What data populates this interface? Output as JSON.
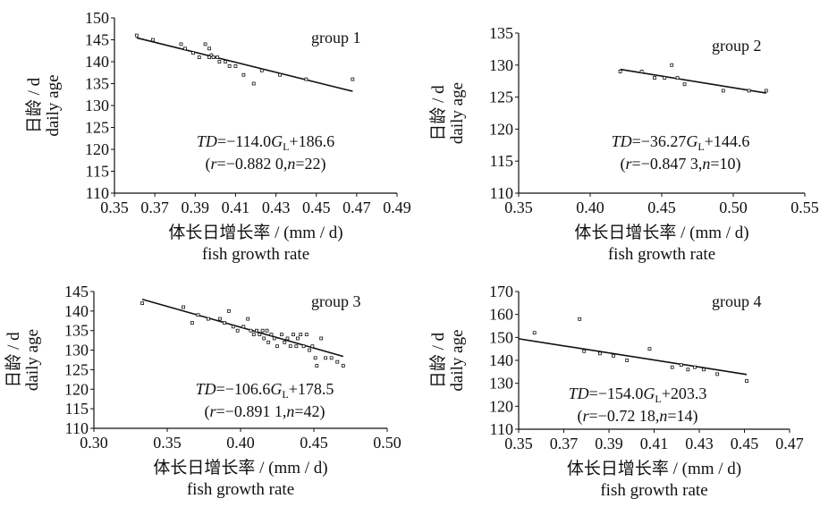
{
  "chart_data": [
    {
      "type": "scatter",
      "title": "group 1",
      "ylabel_cn": "日龄 / d",
      "ylabel_en": "daily age",
      "xlabel_cn": "体长日增长率 / (mm / d)",
      "xlabel_en": "fish growth rate",
      "xlim": [
        0.35,
        0.49
      ],
      "ylim": [
        110,
        150
      ],
      "xticks": [
        0.35,
        0.37,
        0.39,
        0.41,
        0.43,
        0.45,
        0.47,
        0.49
      ],
      "xtick_labels": [
        "0.35",
        "0.37",
        "0.39",
        "0.41",
        "0.43",
        "0.45",
        "0.47",
        "0.49"
      ],
      "yticks": [
        110,
        115,
        120,
        125,
        130,
        135,
        140,
        145,
        150
      ],
      "ytick_labels": [
        "110",
        "115",
        "120",
        "125",
        "130",
        "135",
        "140",
        "145",
        "150"
      ],
      "points": [
        [
          0.361,
          146
        ],
        [
          0.369,
          145
        ],
        [
          0.383,
          144
        ],
        [
          0.385,
          143
        ],
        [
          0.389,
          142
        ],
        [
          0.392,
          141
        ],
        [
          0.395,
          144
        ],
        [
          0.397,
          143
        ],
        [
          0.398,
          141.5
        ],
        [
          0.399,
          141
        ],
        [
          0.397,
          141
        ],
        [
          0.401,
          141
        ],
        [
          0.402,
          140
        ],
        [
          0.405,
          140
        ],
        [
          0.407,
          139
        ],
        [
          0.414,
          137
        ],
        [
          0.419,
          135
        ],
        [
          0.423,
          138
        ],
        [
          0.432,
          137
        ],
        [
          0.445,
          136
        ],
        [
          0.468,
          136
        ],
        [
          0.41,
          139
        ]
      ],
      "fit_line": {
        "x": [
          0.361,
          0.468
        ],
        "y": [
          145.45,
          133.25
        ]
      },
      "equation": {
        "lhs": "TD",
        "rest": "=−114.0",
        "var": "G",
        "sub": "L",
        "tail": "+186.6"
      },
      "stats": {
        "r_label": "r",
        "r_value": "=−0.882 0,",
        "n_label": "n",
        "n_value": "=22)"
      }
    },
    {
      "type": "scatter",
      "title": "group 2",
      "ylabel_cn": "日龄 / d",
      "ylabel_en": "daily age",
      "xlabel_cn": "体长日增长率 / (mm / d)",
      "xlabel_en": "fish growth rate",
      "xlim": [
        0.35,
        0.55
      ],
      "ylim": [
        110,
        135
      ],
      "xticks": [
        0.35,
        0.4,
        0.45,
        0.5,
        0.55
      ],
      "xtick_labels": [
        "0.35",
        "0.40",
        "0.45",
        "0.50",
        "0.55"
      ],
      "yticks": [
        110,
        115,
        120,
        125,
        130,
        135
      ],
      "ytick_labels": [
        "110",
        "115",
        "120",
        "125",
        "130",
        "135"
      ],
      "points": [
        [
          0.421,
          129
        ],
        [
          0.436,
          129
        ],
        [
          0.445,
          128
        ],
        [
          0.452,
          128
        ],
        [
          0.457,
          130
        ],
        [
          0.461,
          128
        ],
        [
          0.466,
          127
        ],
        [
          0.493,
          126
        ],
        [
          0.511,
          126
        ],
        [
          0.523,
          126
        ]
      ],
      "fit_line": {
        "x": [
          0.421,
          0.523
        ],
        "y": [
          129.33,
          125.63
        ]
      },
      "equation": {
        "lhs": "TD",
        "rest": "=−36.27",
        "var": "G",
        "sub": "L",
        "tail": "+144.6"
      },
      "stats": {
        "r_label": "r",
        "r_value": "=−0.847 3,",
        "n_label": "n",
        "n_value": "=10)"
      }
    },
    {
      "type": "scatter",
      "title": "group 3",
      "ylabel_cn": "日龄 / d",
      "ylabel_en": "daily age",
      "xlabel_cn": "体长日增长率 / (mm / d)",
      "xlabel_en": "fish growth rate",
      "xlim": [
        0.3,
        0.5
      ],
      "ylim": [
        110,
        145
      ],
      "xticks": [
        0.3,
        0.35,
        0.4,
        0.45,
        0.5
      ],
      "xtick_labels": [
        "0.30",
        "0.35",
        "0.40",
        "0.45",
        "0.50"
      ],
      "yticks": [
        110,
        115,
        120,
        125,
        130,
        135,
        140,
        145
      ],
      "ytick_labels": [
        "110",
        "115",
        "120",
        "125",
        "130",
        "135",
        "140",
        "145"
      ],
      "points": [
        [
          0.333,
          142
        ],
        [
          0.361,
          141
        ],
        [
          0.367,
          137
        ],
        [
          0.371,
          139
        ],
        [
          0.378,
          138
        ],
        [
          0.386,
          138
        ],
        [
          0.389,
          137
        ],
        [
          0.392,
          140
        ],
        [
          0.395,
          136
        ],
        [
          0.398,
          135
        ],
        [
          0.402,
          136
        ],
        [
          0.405,
          138
        ],
        [
          0.407,
          135
        ],
        [
          0.409,
          134
        ],
        [
          0.411,
          135
        ],
        [
          0.413,
          134
        ],
        [
          0.415,
          135
        ],
        [
          0.416,
          133
        ],
        [
          0.418,
          135
        ],
        [
          0.419,
          132
        ],
        [
          0.421,
          134
        ],
        [
          0.423,
          133
        ],
        [
          0.425,
          131
        ],
        [
          0.428,
          134
        ],
        [
          0.43,
          132
        ],
        [
          0.432,
          133
        ],
        [
          0.434,
          131
        ],
        [
          0.436,
          134
        ],
        [
          0.438,
          131
        ],
        [
          0.439,
          133
        ],
        [
          0.441,
          134
        ],
        [
          0.443,
          131
        ],
        [
          0.445,
          134
        ],
        [
          0.447,
          130
        ],
        [
          0.449,
          131
        ],
        [
          0.451,
          128
        ],
        [
          0.452,
          126
        ],
        [
          0.455,
          133
        ],
        [
          0.458,
          128
        ],
        [
          0.462,
          128
        ],
        [
          0.466,
          127
        ],
        [
          0.47,
          126
        ]
      ],
      "fit_line": {
        "x": [
          0.333,
          0.47
        ],
        "y": [
          143.0,
          128.4
        ]
      },
      "equation": {
        "lhs": "TD",
        "rest": "=−106.6",
        "var": "G",
        "sub": "L",
        "tail": "+178.5"
      },
      "stats": {
        "r_label": "r",
        "r_value": "=−0.891 1,",
        "n_label": "n",
        "n_value": "=42)"
      }
    },
    {
      "type": "scatter",
      "title": "group 4",
      "ylabel_cn": "日龄 / d",
      "ylabel_en": "daily age",
      "xlabel_cn": "体长日增长率 / (mm / d)",
      "xlabel_en": "fish growth rate",
      "xlim": [
        0.35,
        0.47
      ],
      "ylim": [
        110,
        170
      ],
      "xticks": [
        0.35,
        0.37,
        0.39,
        0.41,
        0.43,
        0.45,
        0.47
      ],
      "xtick_labels": [
        "0.35",
        "0.37",
        "0.39",
        "0.41",
        "0.43",
        "0.45",
        "0.47"
      ],
      "yticks": [
        110,
        120,
        130,
        140,
        150,
        160,
        170
      ],
      "ytick_labels": [
        "110",
        "120",
        "130",
        "140",
        "150",
        "160",
        "170"
      ],
      "points": [
        [
          0.357,
          152
        ],
        [
          0.377,
          158
        ],
        [
          0.379,
          144
        ],
        [
          0.386,
          143
        ],
        [
          0.392,
          142
        ],
        [
          0.398,
          140
        ],
        [
          0.408,
          145
        ],
        [
          0.418,
          137
        ],
        [
          0.422,
          138
        ],
        [
          0.425,
          136
        ],
        [
          0.428,
          137
        ],
        [
          0.432,
          136
        ],
        [
          0.438,
          134
        ],
        [
          0.451,
          131
        ]
      ],
      "fit_line": {
        "x": [
          0.35,
          0.451
        ],
        "y": [
          149.4,
          133.85
        ]
      },
      "equation": {
        "lhs": "TD",
        "rest": "=−154.0",
        "var": "G",
        "sub": "L",
        "tail": "+203.3"
      },
      "stats": {
        "r_label": "r",
        "r_value": "=−0.72 18,",
        "n_label": "n",
        "n_value": "=14)"
      }
    }
  ]
}
